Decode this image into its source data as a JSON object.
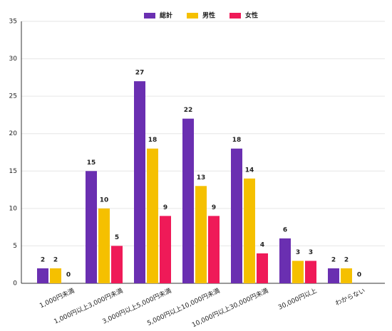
{
  "chart_data": {
    "type": "bar",
    "categories": [
      "1,000円未満",
      "1,000円以上3,000円未満",
      "3,000円以上5,000円未満",
      "5,000円以上10,000円未満",
      "10,000円以上30,000円未満",
      "30,000円以上",
      "わからない"
    ],
    "series": [
      {
        "name": "総計",
        "color": "#6a2fb1",
        "values": [
          2,
          15,
          27,
          22,
          18,
          6,
          2
        ]
      },
      {
        "name": "男性",
        "color": "#f5c000",
        "values": [
          2,
          10,
          18,
          13,
          14,
          3,
          2
        ]
      },
      {
        "name": "女性",
        "color": "#ef1a58",
        "values": [
          0,
          5,
          9,
          9,
          4,
          3,
          0
        ]
      }
    ],
    "ylim": [
      0,
      35
    ],
    "yticks": [
      0,
      5,
      10,
      15,
      20,
      25,
      30,
      35
    ],
    "grid": true,
    "legend": "top"
  }
}
